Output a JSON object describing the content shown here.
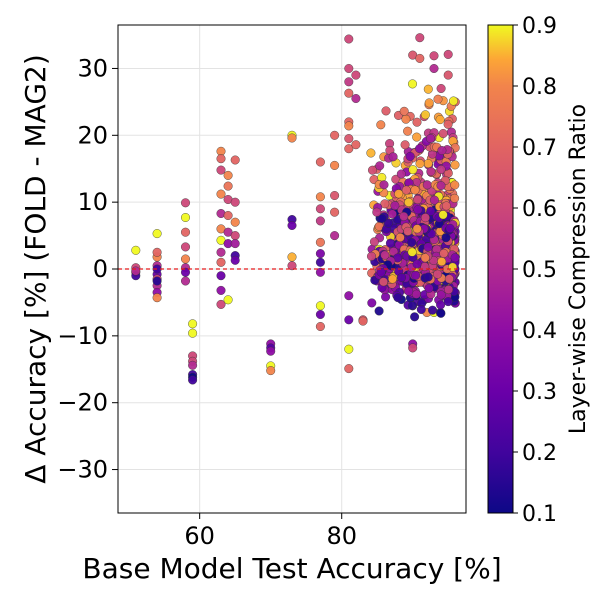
{
  "chart_data": {
    "type": "scatter",
    "xlabel": "Base Model Test Accuracy [%]",
    "ylabel": "Δ Accuracy [%] (FOLD - MAG2)",
    "xlim": [
      48.5,
      97.5
    ],
    "ylim": [
      -36.5,
      36.5
    ],
    "xticks": [
      60,
      80
    ],
    "xtick_labels": [
      "60",
      "80"
    ],
    "yticks": [
      30,
      20,
      10,
      0,
      -10,
      -20,
      -30
    ],
    "ytick_labels": [
      "30",
      "20",
      "10",
      "0",
      "−10",
      "−20",
      "−30"
    ],
    "grid": true,
    "reference_line": {
      "y": 0,
      "color": "#e41a1c",
      "style": "dashed"
    },
    "colorbar": {
      "label": "Layer-wise Compression Ratio",
      "colormap": "plasma",
      "range": [
        0.1,
        0.9
      ],
      "ticks": [
        0.9,
        0.8,
        0.7,
        0.6,
        0.5,
        0.4,
        0.3,
        0.2,
        0.1
      ],
      "tick_labels": [
        "0.9",
        "0.8",
        "0.7",
        "0.6",
        "0.5",
        "0.4",
        "0.3",
        "0.2",
        "0.1"
      ]
    },
    "points": [
      [
        51,
        2.8,
        0.9
      ],
      [
        51,
        0.2,
        0.6
      ],
      [
        51,
        -0.5,
        0.7
      ],
      [
        51,
        -1.0,
        0.2
      ],
      [
        51,
        -0.3,
        0.5
      ],
      [
        54,
        5.3,
        0.9
      ],
      [
        54,
        1.8,
        0.8
      ],
      [
        54,
        0.5,
        0.5
      ],
      [
        54,
        -0.8,
        0.3
      ],
      [
        54,
        -1.5,
        0.6
      ],
      [
        54,
        -2.5,
        0.5
      ],
      [
        54,
        -3.5,
        0.4
      ],
      [
        54,
        -4.3,
        0.8
      ],
      [
        54,
        0.0,
        0.2
      ],
      [
        54,
        -1.8,
        0.15
      ],
      [
        54,
        2.5,
        0.7
      ],
      [
        58,
        9.9,
        0.6
      ],
      [
        58,
        7.7,
        0.9
      ],
      [
        58,
        5.5,
        0.7
      ],
      [
        58,
        3.3,
        0.6
      ],
      [
        58,
        1.5,
        0.8
      ],
      [
        58,
        0.2,
        0.5
      ],
      [
        58,
        -0.5,
        0.3
      ],
      [
        58,
        -1.8,
        0.5
      ],
      [
        59,
        -8.2,
        0.9
      ],
      [
        59,
        -9.6,
        0.9
      ],
      [
        59,
        -13.0,
        0.6
      ],
      [
        59,
        -13.8,
        0.6
      ],
      [
        59,
        -15.8,
        0.2
      ],
      [
        59,
        -16.2,
        0.1
      ],
      [
        59,
        -16.6,
        0.2
      ],
      [
        59,
        -14.4,
        0.5
      ],
      [
        63,
        17.6,
        0.8
      ],
      [
        63,
        16.5,
        0.7
      ],
      [
        63,
        14.8,
        0.6
      ],
      [
        63,
        11.2,
        0.8
      ],
      [
        63,
        8.3,
        0.5
      ],
      [
        63,
        6.0,
        0.8
      ],
      [
        63,
        4.3,
        0.9
      ],
      [
        63,
        2.5,
        0.5
      ],
      [
        63,
        1.0,
        0.7
      ],
      [
        63,
        -1.0,
        0.3
      ],
      [
        63,
        -3.2,
        0.4
      ],
      [
        63,
        -5.3,
        0.6
      ],
      [
        64,
        14.0,
        0.8
      ],
      [
        64,
        12.4,
        0.75
      ],
      [
        64,
        10.4,
        0.6
      ],
      [
        64,
        8.0,
        0.7
      ],
      [
        64,
        5.5,
        0.5
      ],
      [
        64,
        3.8,
        0.4
      ],
      [
        64,
        -4.6,
        0.9
      ],
      [
        65,
        16.3,
        0.7
      ],
      [
        65,
        10.0,
        0.6
      ],
      [
        65,
        7.0,
        0.8
      ],
      [
        65,
        5.0,
        0.6
      ],
      [
        65,
        2.0,
        0.2
      ],
      [
        65,
        1.3,
        0.3
      ],
      [
        65,
        3.8,
        0.45
      ],
      [
        70,
        -11.2,
        0.4
      ],
      [
        70,
        -11.8,
        0.25
      ],
      [
        70,
        -12.3,
        0.4
      ],
      [
        70,
        -14.5,
        0.9
      ],
      [
        70,
        -15.2,
        0.8
      ],
      [
        73,
        20.0,
        0.9
      ],
      [
        73,
        19.6,
        0.8
      ],
      [
        73,
        7.4,
        0.2
      ],
      [
        73,
        6.5,
        0.3
      ],
      [
        73,
        1.8,
        0.85
      ],
      [
        73,
        0.5,
        0.6
      ],
      [
        77,
        16.0,
        0.7
      ],
      [
        77,
        10.8,
        0.8
      ],
      [
        77,
        9.0,
        0.6
      ],
      [
        77,
        7.2,
        0.55
      ],
      [
        77,
        4.0,
        0.75
      ],
      [
        77,
        2.3,
        0.35
      ],
      [
        77,
        1.0,
        0.2
      ],
      [
        77,
        -0.5,
        0.4
      ],
      [
        77,
        -5.5,
        0.9
      ],
      [
        77,
        -6.8,
        0.3
      ],
      [
        77,
        -8.6,
        0.7
      ],
      [
        79,
        20.0,
        0.7
      ],
      [
        79,
        15.5,
        0.8
      ],
      [
        79,
        11.0,
        0.65
      ],
      [
        79,
        8.5,
        0.7
      ],
      [
        79,
        5.0,
        0.5
      ],
      [
        81,
        34.4,
        0.6
      ],
      [
        81,
        30.0,
        0.6
      ],
      [
        81,
        28.0,
        0.55
      ],
      [
        81,
        26.3,
        0.7
      ],
      [
        81,
        22.0,
        0.7
      ],
      [
        81,
        21.4,
        0.8
      ],
      [
        81,
        19.5,
        0.65
      ],
      [
        81,
        18.0,
        0.7
      ],
      [
        81,
        -4.0,
        0.4
      ],
      [
        81,
        -7.6,
        0.3
      ],
      [
        81,
        -12.0,
        0.9
      ],
      [
        81,
        -14.9,
        0.7
      ],
      [
        82,
        29.0,
        0.6
      ],
      [
        82,
        25.5,
        0.5
      ],
      [
        82,
        18.6,
        0.7
      ],
      [
        83,
        -7.6,
        0.65
      ],
      [
        83,
        -7.8,
        0.7
      ],
      [
        90,
        -5.5,
        0.9
      ],
      [
        90,
        -11.2,
        0.4
      ],
      [
        90,
        -11.8,
        0.6
      ],
      [
        91,
        34.6,
        0.6
      ],
      [
        90,
        32.0,
        0.65
      ],
      [
        91,
        31.5,
        0.7
      ],
      [
        93,
        31.9,
        0.6
      ],
      [
        95,
        32.1,
        0.6
      ],
      [
        93,
        30.0,
        0.5
      ],
      [
        92,
        -6.5,
        0.8
      ],
      [
        93,
        -6.5,
        0.9
      ],
      [
        96,
        25.0,
        0.7
      ],
      [
        95,
        29.0,
        0.65
      ],
      [
        94,
        27.0,
        0.6
      ]
    ]
  }
}
